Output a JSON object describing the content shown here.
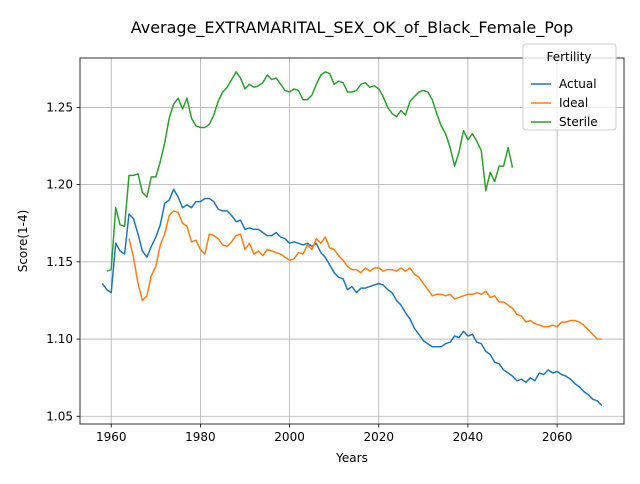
{
  "chart_data": {
    "type": "line",
    "title": "Average_EXTRAMARITAL_SEX_OK_of_Black_Female_Pop",
    "xlabel": "Years",
    "ylabel": "Score(1-4)",
    "xlim": [
      1953,
      2075
    ],
    "ylim": [
      1.045,
      1.282
    ],
    "xticks": [
      1960,
      1980,
      2000,
      2020,
      2040,
      2060
    ],
    "yticks": [
      1.05,
      1.1,
      1.15,
      1.2,
      1.25
    ],
    "ytick_labels": [
      "1.05",
      "1.10",
      "1.15",
      "1.20",
      "1.25"
    ],
    "grid": true,
    "legend": {
      "title": "Fertility",
      "position": "top-right"
    },
    "series": [
      {
        "name": "Actual",
        "color": "#1f77b4",
        "x": [
          1958,
          1959,
          1960,
          1961,
          1962,
          1963,
          1964,
          1965,
          1966,
          1967,
          1968,
          1969,
          1970,
          1971,
          1972,
          1973,
          1974,
          1975,
          1976,
          1977,
          1978,
          1979,
          1980,
          1981,
          1982,
          1983,
          1984,
          1985,
          1986,
          1987,
          1988,
          1989,
          1990,
          1991,
          1992,
          1993,
          1994,
          1995,
          1996,
          1997,
          1998,
          1999,
          2000,
          2001,
          2002,
          2003,
          2004,
          2005,
          2006,
          2007,
          2008,
          2009,
          2010,
          2011,
          2012,
          2013,
          2014,
          2015,
          2016,
          2017,
          2018,
          2019,
          2020,
          2021,
          2022,
          2023,
          2024,
          2025,
          2026,
          2027,
          2028,
          2029,
          2030,
          2031,
          2032,
          2033,
          2034,
          2035,
          2036,
          2037,
          2038,
          2039,
          2040,
          2041,
          2042,
          2043,
          2044,
          2045,
          2046,
          2047,
          2048,
          2049,
          2050,
          2051,
          2052,
          2053,
          2054,
          2055,
          2056,
          2057,
          2058,
          2059,
          2060,
          2061,
          2062,
          2063,
          2064,
          2065,
          2066,
          2067,
          2068,
          2069,
          2070
        ],
        "values": [
          1.136,
          1.132,
          1.13,
          1.162,
          1.157,
          1.155,
          1.181,
          1.178,
          1.168,
          1.157,
          1.153,
          1.16,
          1.166,
          1.174,
          1.188,
          1.19,
          1.197,
          1.192,
          1.185,
          1.187,
          1.185,
          1.189,
          1.189,
          1.191,
          1.191,
          1.189,
          1.184,
          1.183,
          1.183,
          1.18,
          1.176,
          1.177,
          1.171,
          1.172,
          1.171,
          1.171,
          1.169,
          1.167,
          1.167,
          1.169,
          1.166,
          1.165,
          1.162,
          1.163,
          1.162,
          1.161,
          1.162,
          1.16,
          1.162,
          1.156,
          1.153,
          1.148,
          1.143,
          1.14,
          1.139,
          1.132,
          1.134,
          1.13,
          1.133,
          1.133,
          1.134,
          1.135,
          1.136,
          1.135,
          1.132,
          1.13,
          1.125,
          1.122,
          1.117,
          1.113,
          1.107,
          1.103,
          1.099,
          1.097,
          1.095,
          1.095,
          1.095,
          1.097,
          1.098,
          1.102,
          1.101,
          1.105,
          1.102,
          1.103,
          1.098,
          1.097,
          1.092,
          1.09,
          1.085,
          1.084,
          1.08,
          1.078,
          1.076,
          1.073,
          1.074,
          1.072,
          1.075,
          1.073,
          1.078,
          1.077,
          1.08,
          1.078,
          1.079,
          1.077,
          1.076,
          1.074,
          1.071,
          1.069,
          1.066,
          1.064,
          1.061,
          1.06,
          1.057
        ]
      },
      {
        "name": "Ideal",
        "color": "#ff7f0e",
        "x": [
          1964,
          1965,
          1966,
          1967,
          1968,
          1969,
          1970,
          1971,
          1972,
          1973,
          1974,
          1975,
          1976,
          1977,
          1978,
          1979,
          1980,
          1981,
          1982,
          1983,
          1984,
          1985,
          1986,
          1987,
          1988,
          1989,
          1990,
          1991,
          1992,
          1993,
          1994,
          1995,
          1996,
          1997,
          1998,
          1999,
          2000,
          2001,
          2002,
          2003,
          2004,
          2005,
          2006,
          2007,
          2008,
          2009,
          2010,
          2011,
          2012,
          2013,
          2014,
          2015,
          2016,
          2017,
          2018,
          2019,
          2020,
          2021,
          2022,
          2023,
          2024,
          2025,
          2026,
          2027,
          2028,
          2029,
          2030,
          2031,
          2032,
          2033,
          2034,
          2035,
          2036,
          2037,
          2038,
          2039,
          2040,
          2041,
          2042,
          2043,
          2044,
          2045,
          2046,
          2047,
          2048,
          2049,
          2050,
          2051,
          2052,
          2053,
          2054,
          2055,
          2056,
          2057,
          2058,
          2059,
          2060,
          2061,
          2062,
          2063,
          2064,
          2065,
          2066,
          2067,
          2068,
          2069,
          2070
        ],
        "values": [
          1.165,
          1.153,
          1.136,
          1.125,
          1.128,
          1.141,
          1.147,
          1.161,
          1.168,
          1.18,
          1.183,
          1.182,
          1.175,
          1.173,
          1.163,
          1.164,
          1.158,
          1.155,
          1.168,
          1.167,
          1.165,
          1.161,
          1.16,
          1.163,
          1.167,
          1.168,
          1.158,
          1.162,
          1.155,
          1.157,
          1.154,
          1.158,
          1.157,
          1.156,
          1.155,
          1.153,
          1.151,
          1.152,
          1.156,
          1.155,
          1.161,
          1.158,
          1.165,
          1.162,
          1.166,
          1.159,
          1.158,
          1.154,
          1.151,
          1.147,
          1.145,
          1.145,
          1.143,
          1.146,
          1.144,
          1.146,
          1.146,
          1.144,
          1.145,
          1.145,
          1.144,
          1.146,
          1.144,
          1.146,
          1.142,
          1.14,
          1.136,
          1.132,
          1.128,
          1.129,
          1.129,
          1.128,
          1.129,
          1.126,
          1.127,
          1.128,
          1.129,
          1.129,
          1.13,
          1.129,
          1.131,
          1.127,
          1.128,
          1.124,
          1.124,
          1.122,
          1.12,
          1.116,
          1.115,
          1.111,
          1.112,
          1.11,
          1.109,
          1.108,
          1.108,
          1.109,
          1.108,
          1.111,
          1.111,
          1.112,
          1.112,
          1.111,
          1.109,
          1.106,
          1.103,
          1.1,
          1.1
        ]
      },
      {
        "name": "Sterile",
        "color": "#2ca02c",
        "x": [
          1959,
          1960,
          1961,
          1962,
          1963,
          1964,
          1965,
          1966,
          1967,
          1968,
          1969,
          1970,
          1971,
          1972,
          1973,
          1974,
          1975,
          1976,
          1977,
          1978,
          1979,
          1980,
          1981,
          1982,
          1983,
          1984,
          1985,
          1986,
          1987,
          1988,
          1989,
          1990,
          1991,
          1992,
          1993,
          1994,
          1995,
          1996,
          1997,
          1998,
          1999,
          2000,
          2001,
          2002,
          2003,
          2004,
          2005,
          2006,
          2007,
          2008,
          2009,
          2010,
          2011,
          2012,
          2013,
          2014,
          2015,
          2016,
          2017,
          2018,
          2019,
          2020,
          2021,
          2022,
          2023,
          2024,
          2025,
          2026,
          2027,
          2028,
          2029,
          2030,
          2031,
          2032,
          2033,
          2034,
          2035,
          2036,
          2037,
          2038,
          2039,
          2040,
          2041,
          2042,
          2043,
          2044,
          2045,
          2046,
          2047,
          2048,
          2049,
          2050
        ],
        "values": [
          1.144,
          1.145,
          1.185,
          1.174,
          1.173,
          1.206,
          1.206,
          1.207,
          1.195,
          1.192,
          1.205,
          1.205,
          1.215,
          1.227,
          1.243,
          1.252,
          1.256,
          1.249,
          1.256,
          1.243,
          1.238,
          1.237,
          1.237,
          1.239,
          1.245,
          1.254,
          1.26,
          1.263,
          1.268,
          1.273,
          1.269,
          1.262,
          1.265,
          1.263,
          1.264,
          1.266,
          1.271,
          1.268,
          1.269,
          1.265,
          1.261,
          1.26,
          1.262,
          1.261,
          1.255,
          1.255,
          1.258,
          1.265,
          1.271,
          1.273,
          1.272,
          1.265,
          1.267,
          1.266,
          1.26,
          1.26,
          1.261,
          1.265,
          1.266,
          1.263,
          1.264,
          1.262,
          1.257,
          1.25,
          1.246,
          1.244,
          1.248,
          1.245,
          1.254,
          1.257,
          1.26,
          1.261,
          1.26,
          1.255,
          1.246,
          1.238,
          1.233,
          1.224,
          1.212,
          1.221,
          1.235,
          1.229,
          1.233,
          1.228,
          1.222,
          1.196,
          1.208,
          1.202,
          1.212,
          1.212,
          1.224,
          1.211
        ]
      }
    ]
  }
}
